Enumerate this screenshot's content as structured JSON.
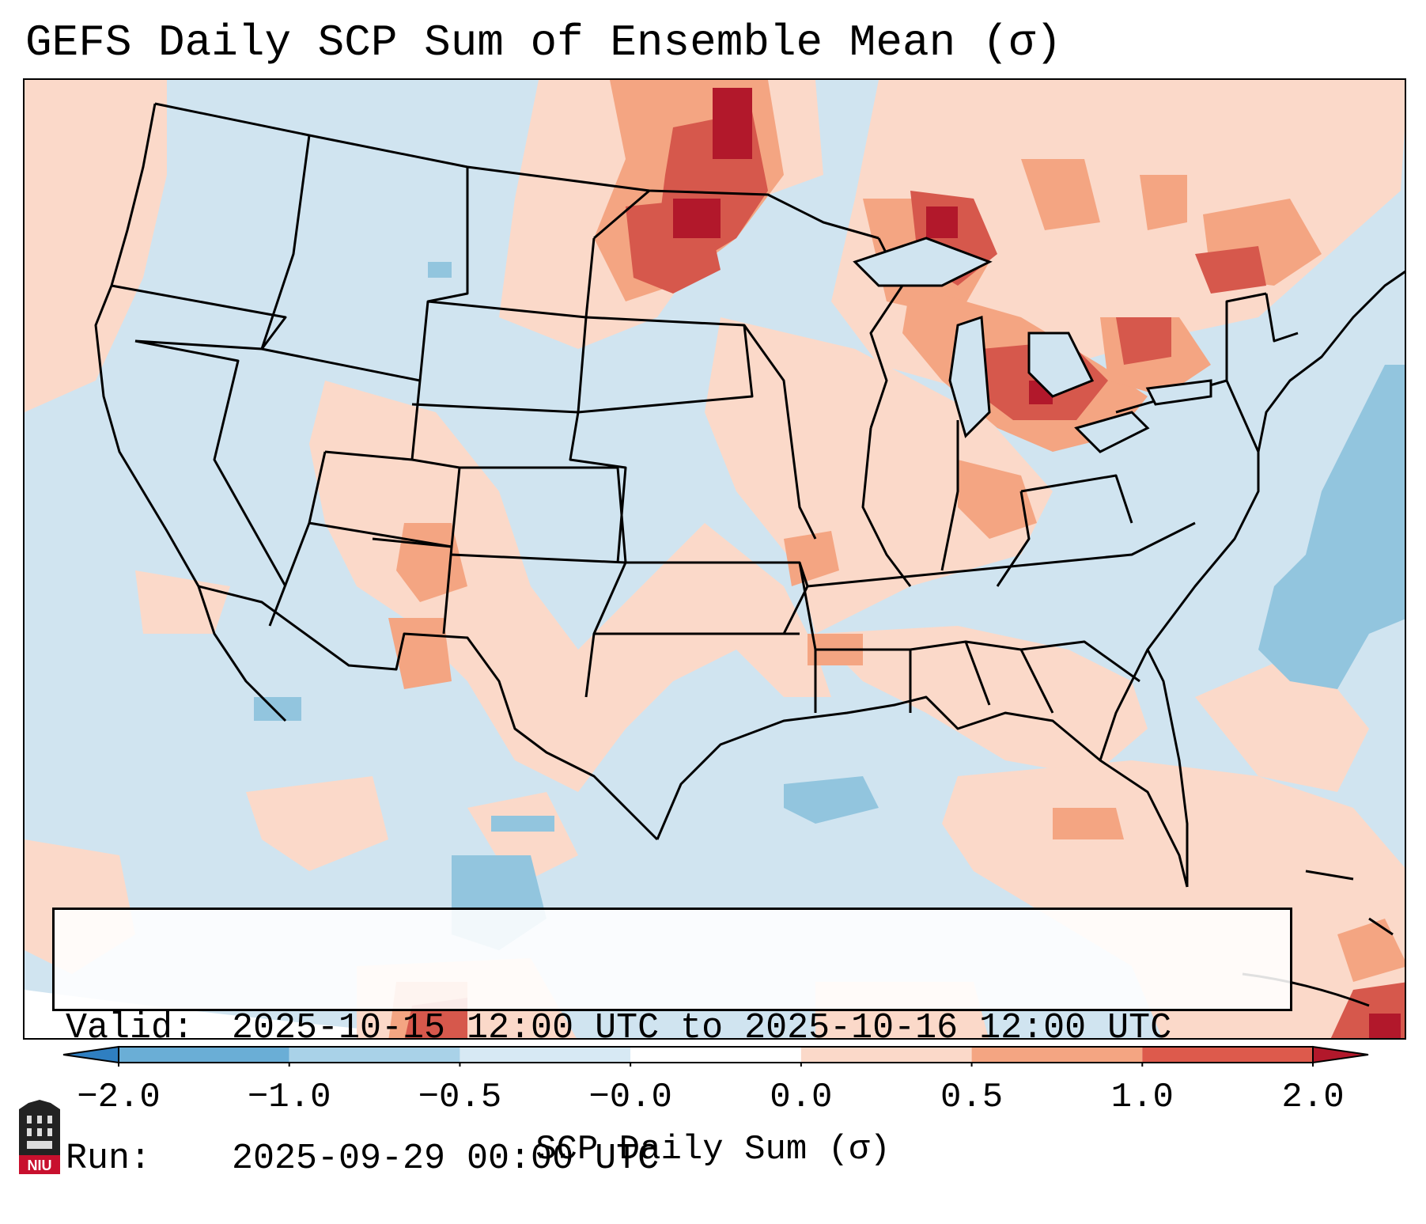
{
  "title": "GEFS Daily SCP Sum of Ensemble Mean (σ)",
  "info": {
    "valid_label": "Valid:",
    "valid_value": "2025-10-15 12:00 UTC to 2025-10-16 12:00 UTC",
    "run_label": "Run:",
    "run_value": "2025-09-29 00:00 UTC"
  },
  "colorbar": {
    "label": "SCP Daily Sum (σ)",
    "ticks": [
      "−2.0",
      "−1.0",
      "−0.5",
      "−0.0",
      "0.0",
      "0.5",
      "1.0",
      "2.0"
    ],
    "colors": [
      "#2f7fc1",
      "#6aaed6",
      "#a9d2e8",
      "#d7e9f4",
      "#fbd9c9",
      "#f4a582",
      "#dd5a4c",
      "#b2182b"
    ],
    "extend": "both"
  },
  "map": {
    "region": "Continental United States",
    "background_color": "#d0e4f0",
    "border_color": "#000000"
  },
  "logo": {
    "text": "NIU"
  }
}
